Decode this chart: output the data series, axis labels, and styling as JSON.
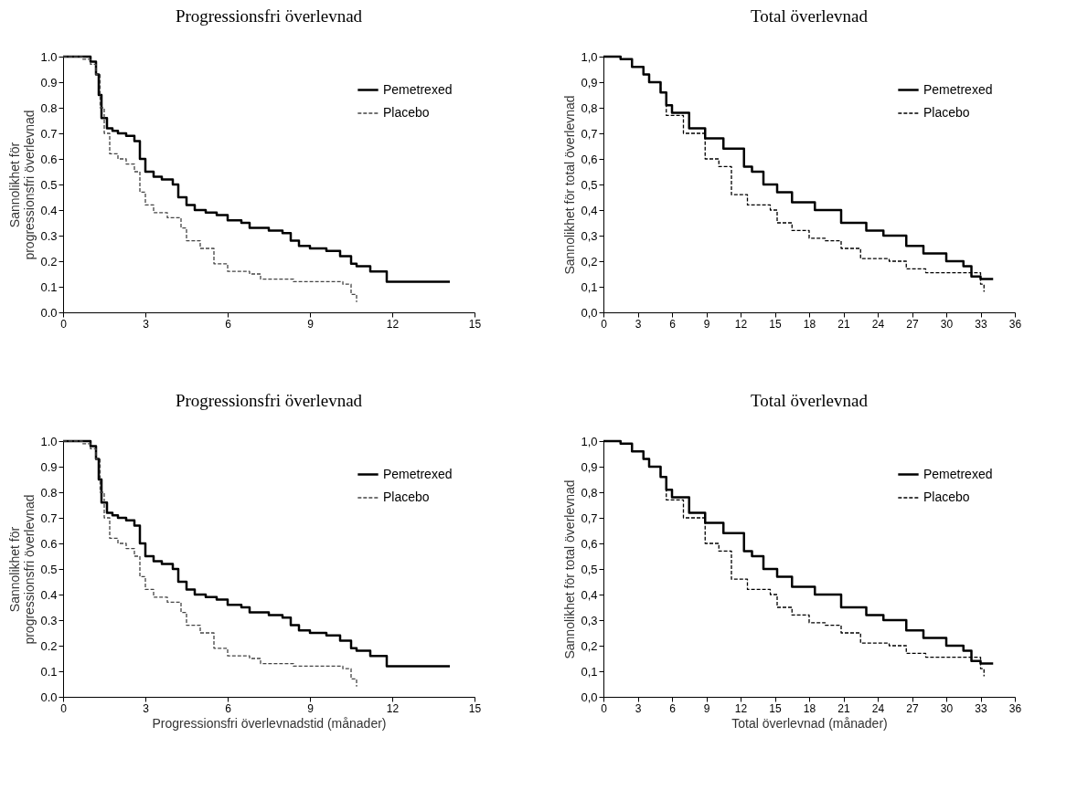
{
  "chart_data": [
    {
      "type": "step",
      "title": "Progressionsfri överlevnad",
      "ylabel": "Sannolikhet för progressionsfri överlevnad",
      "xlim": [
        0,
        15
      ],
      "xticks": [
        0,
        3,
        6,
        9,
        12,
        15
      ],
      "ylim": [
        0,
        1
      ],
      "yticks": [
        {
          "value": 0,
          "label": "0.0"
        },
        0.1,
        0.2,
        0.3,
        0.4,
        0.5,
        0.6,
        0.7,
        0.8,
        0.9,
        {
          "value": 1,
          "label": "1.0"
        }
      ],
      "legend": "top right",
      "grid": false,
      "series": [
        {
          "name": "Pemetrexed",
          "color": "#000000",
          "line_style": "solid",
          "x": [
            0,
            0.8,
            1.0,
            1.2,
            1.3,
            1.4,
            1.6,
            1.8,
            2.0,
            2.3,
            2.6,
            2.8,
            3.0,
            3.3,
            3.6,
            4.0,
            4.2,
            4.5,
            4.8,
            5.2,
            5.6,
            6.0,
            6.5,
            6.8,
            7.5,
            8.0,
            8.3,
            8.6,
            9.0,
            9.6,
            10.1,
            10.5,
            10.7,
            11.2,
            11.8,
            14.1
          ],
          "values": [
            1.0,
            1.0,
            0.98,
            0.93,
            0.85,
            0.76,
            0.72,
            0.71,
            0.7,
            0.69,
            0.67,
            0.6,
            0.55,
            0.53,
            0.52,
            0.5,
            0.45,
            0.42,
            0.4,
            0.39,
            0.38,
            0.36,
            0.35,
            0.33,
            0.32,
            0.31,
            0.28,
            0.26,
            0.25,
            0.24,
            0.22,
            0.19,
            0.18,
            0.16,
            0.12,
            0.12
          ]
        },
        {
          "name": "Placebo",
          "color": "#444444",
          "line_style": "dashed",
          "x": [
            0,
            0.7,
            1.0,
            1.2,
            1.35,
            1.5,
            1.7,
            2.0,
            2.3,
            2.6,
            2.8,
            3.0,
            3.3,
            3.8,
            4.3,
            4.5,
            5.0,
            5.5,
            6.0,
            6.8,
            7.2,
            8.4,
            10.2,
            10.5,
            10.7
          ],
          "values": [
            1.0,
            0.99,
            0.97,
            0.93,
            0.8,
            0.7,
            0.62,
            0.6,
            0.58,
            0.55,
            0.47,
            0.42,
            0.39,
            0.37,
            0.33,
            0.28,
            0.25,
            0.19,
            0.16,
            0.15,
            0.13,
            0.12,
            0.11,
            0.07,
            0.04
          ]
        }
      ]
    },
    {
      "type": "step",
      "title": "Total överlevnad",
      "ylabel": "Sannolikhet för total överlevnad",
      "xlim": [
        0,
        36
      ],
      "xticks": [
        0,
        3,
        6,
        9,
        12,
        15,
        18,
        21,
        24,
        27,
        30,
        33,
        36
      ],
      "ylim": [
        0,
        1
      ],
      "yticks": [
        {
          "value": 0,
          "label": "0,0"
        },
        {
          "value": 0.1,
          "label": "0,1"
        },
        {
          "value": 0.2,
          "label": "0,2"
        },
        {
          "value": 0.3,
          "label": "0,3"
        },
        {
          "value": 0.4,
          "label": "0,4"
        },
        {
          "value": 0.5,
          "label": "0,5"
        },
        {
          "value": 0.6,
          "label": "0,6"
        },
        {
          "value": 0.7,
          "label": "0,7"
        },
        {
          "value": 0.8,
          "label": "0,8"
        },
        {
          "value": 0.9,
          "label": "0,9"
        },
        {
          "value": 1,
          "label": "1,0"
        }
      ],
      "legend": "top right",
      "grid": false,
      "series": [
        {
          "name": "Pemetrexed",
          "color": "#000000",
          "line_style": "solid",
          "x": [
            0,
            1.5,
            2.5,
            3.5,
            4,
            5,
            5.5,
            6,
            7.5,
            8.9,
            10.5,
            12.3,
            13,
            14,
            15.2,
            16.5,
            18.5,
            20.8,
            23,
            24.5,
            26.5,
            28,
            30,
            31.5,
            32.2,
            33,
            34.1
          ],
          "values": [
            1.0,
            0.99,
            0.96,
            0.93,
            0.9,
            0.86,
            0.81,
            0.78,
            0.72,
            0.68,
            0.64,
            0.57,
            0.55,
            0.5,
            0.47,
            0.43,
            0.4,
            0.35,
            0.32,
            0.3,
            0.26,
            0.23,
            0.2,
            0.18,
            0.14,
            0.13,
            0.13
          ]
        },
        {
          "name": "Placebo",
          "color": "#000000",
          "line_style": "dashed",
          "x": [
            0,
            1.5,
            2.5,
            3.5,
            4,
            5,
            5.5,
            7,
            8.9,
            10.1,
            11.2,
            12.6,
            14.6,
            15.2,
            16.5,
            18,
            19.4,
            20.8,
            22.5,
            25,
            26.5,
            28.2,
            32.2,
            33,
            33.3
          ],
          "values": [
            1.0,
            0.99,
            0.96,
            0.93,
            0.9,
            0.86,
            0.77,
            0.7,
            0.6,
            0.57,
            0.46,
            0.42,
            0.4,
            0.35,
            0.32,
            0.29,
            0.28,
            0.25,
            0.21,
            0.2,
            0.17,
            0.155,
            0.155,
            0.11,
            0.08
          ]
        }
      ]
    },
    {
      "type": "step",
      "title": "Progressionsfri överlevnad",
      "xlabel": "Progressionsfri överlevnadstid (månader)",
      "ylabel": "Sannolikhet för progressionsfri överlevnad",
      "xlim": [
        0,
        15
      ],
      "xticks": [
        0,
        3,
        6,
        9,
        12,
        15
      ],
      "ylim": [
        0,
        1
      ],
      "yticks": [
        {
          "value": 0,
          "label": "0.0"
        },
        0.1,
        0.2,
        0.3,
        0.4,
        0.5,
        0.6,
        0.7,
        0.8,
        0.9,
        {
          "value": 1,
          "label": "1.0"
        }
      ],
      "legend": "top right",
      "grid": false,
      "series": [
        {
          "name": "Pemetrexed",
          "color": "#000000",
          "line_style": "solid",
          "x": [
            0,
            0.8,
            1.0,
            1.2,
            1.3,
            1.4,
            1.6,
            1.8,
            2.0,
            2.3,
            2.6,
            2.8,
            3.0,
            3.3,
            3.6,
            4.0,
            4.2,
            4.5,
            4.8,
            5.2,
            5.6,
            6.0,
            6.5,
            6.8,
            7.5,
            8.0,
            8.3,
            8.6,
            9.0,
            9.6,
            10.1,
            10.5,
            10.7,
            11.2,
            11.8,
            14.1
          ],
          "values": [
            1.0,
            1.0,
            0.98,
            0.93,
            0.85,
            0.76,
            0.72,
            0.71,
            0.7,
            0.69,
            0.67,
            0.6,
            0.55,
            0.53,
            0.52,
            0.5,
            0.45,
            0.42,
            0.4,
            0.39,
            0.38,
            0.36,
            0.35,
            0.33,
            0.32,
            0.31,
            0.28,
            0.26,
            0.25,
            0.24,
            0.22,
            0.19,
            0.18,
            0.16,
            0.12,
            0.12
          ]
        },
        {
          "name": "Placebo",
          "color": "#444444",
          "line_style": "dashed",
          "x": [
            0,
            0.7,
            1.0,
            1.2,
            1.35,
            1.5,
            1.7,
            2.0,
            2.3,
            2.6,
            2.8,
            3.0,
            3.3,
            3.8,
            4.3,
            4.5,
            5.0,
            5.5,
            6.0,
            6.8,
            7.2,
            8.4,
            10.2,
            10.5,
            10.7
          ],
          "values": [
            1.0,
            0.99,
            0.97,
            0.93,
            0.8,
            0.7,
            0.62,
            0.6,
            0.58,
            0.55,
            0.47,
            0.42,
            0.39,
            0.37,
            0.33,
            0.28,
            0.25,
            0.19,
            0.16,
            0.15,
            0.13,
            0.12,
            0.11,
            0.07,
            0.04
          ]
        }
      ]
    },
    {
      "type": "step",
      "title": "Total överlevnad",
      "xlabel": "Total överlevnad (månader)",
      "ylabel": "Sannolikhet för total överlevnad",
      "xlim": [
        0,
        36
      ],
      "xticks": [
        0,
        3,
        6,
        9,
        12,
        15,
        18,
        21,
        24,
        27,
        30,
        33,
        36
      ],
      "ylim": [
        0,
        1
      ],
      "yticks": [
        {
          "value": 0,
          "label": "0,0"
        },
        {
          "value": 0.1,
          "label": "0,1"
        },
        {
          "value": 0.2,
          "label": "0,2"
        },
        {
          "value": 0.3,
          "label": "0,3"
        },
        {
          "value": 0.4,
          "label": "0,4"
        },
        {
          "value": 0.5,
          "label": "0,5"
        },
        {
          "value": 0.6,
          "label": "0,6"
        },
        {
          "value": 0.7,
          "label": "0,7"
        },
        {
          "value": 0.8,
          "label": "0,8"
        },
        {
          "value": 0.9,
          "label": "0,9"
        },
        {
          "value": 1,
          "label": "1,0"
        }
      ],
      "legend": "top right",
      "grid": false,
      "series": [
        {
          "name": "Pemetrexed",
          "color": "#000000",
          "line_style": "solid",
          "x": [
            0,
            1.5,
            2.5,
            3.5,
            4,
            5,
            5.5,
            6,
            7.5,
            8.9,
            10.5,
            12.3,
            13,
            14,
            15.2,
            16.5,
            18.5,
            20.8,
            23,
            24.5,
            26.5,
            28,
            30,
            31.5,
            32.2,
            33,
            34.1
          ],
          "values": [
            1.0,
            0.99,
            0.96,
            0.93,
            0.9,
            0.86,
            0.81,
            0.78,
            0.72,
            0.68,
            0.64,
            0.57,
            0.55,
            0.5,
            0.47,
            0.43,
            0.4,
            0.35,
            0.32,
            0.3,
            0.26,
            0.23,
            0.2,
            0.18,
            0.14,
            0.13,
            0.13
          ]
        },
        {
          "name": "Placebo",
          "color": "#000000",
          "line_style": "dashed",
          "x": [
            0,
            1.5,
            2.5,
            3.5,
            4,
            5,
            5.5,
            7,
            8.9,
            10.1,
            11.2,
            12.6,
            14.6,
            15.2,
            16.5,
            18,
            19.4,
            20.8,
            22.5,
            25,
            26.5,
            28.2,
            32.2,
            33,
            33.3
          ],
          "values": [
            1.0,
            0.99,
            0.96,
            0.93,
            0.9,
            0.86,
            0.77,
            0.7,
            0.6,
            0.57,
            0.46,
            0.42,
            0.4,
            0.35,
            0.32,
            0.29,
            0.28,
            0.25,
            0.21,
            0.2,
            0.17,
            0.155,
            0.155,
            0.11,
            0.08
          ]
        }
      ]
    }
  ]
}
